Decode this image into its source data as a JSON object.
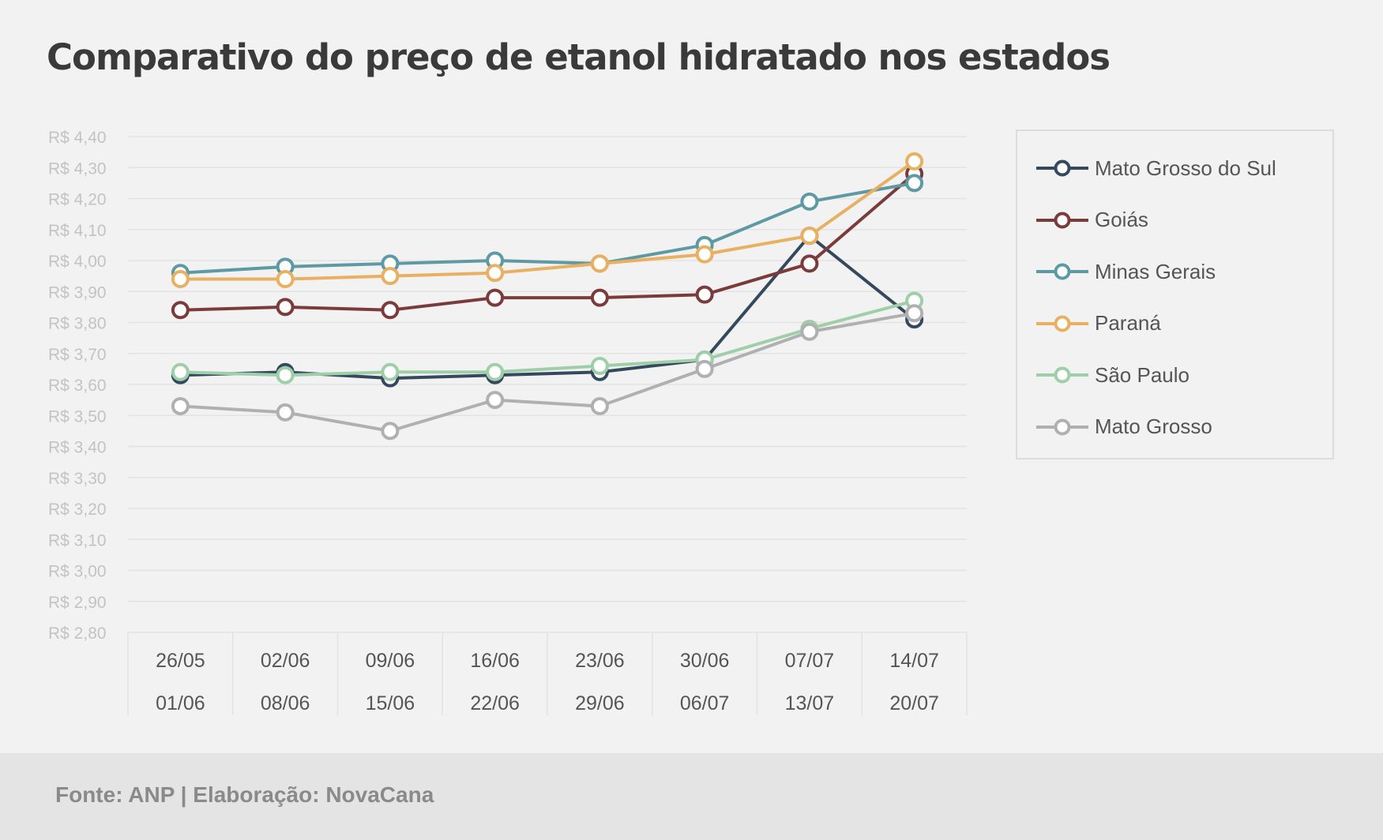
{
  "colors": {
    "background": "#f2f2f2",
    "footer_background": "#e4e4e4",
    "gridline": "#e3e3e3",
    "axis_text": "#c3c3c3",
    "category_text": "#555555"
  },
  "chart_data": {
    "type": "line",
    "title": "Comparativo do preço de etanol hidratado nos estados",
    "xlabel": "",
    "ylabel": "",
    "categories": [
      [
        "26/05",
        "01/06"
      ],
      [
        "02/06",
        "08/06"
      ],
      [
        "09/06",
        "15/06"
      ],
      [
        "16/06",
        "22/06"
      ],
      [
        "23/06",
        "29/06"
      ],
      [
        "30/06",
        "06/07"
      ],
      [
        "07/07",
        "13/07"
      ],
      [
        "14/07",
        "20/07"
      ]
    ],
    "ylim": [
      2.8,
      4.4
    ],
    "ytick_step": 0.1,
    "y_ticks": [
      "R$ 2,80",
      "R$ 2,90",
      "R$ 3,00",
      "R$ 3,10",
      "R$ 3,20",
      "R$ 3,30",
      "R$ 3,40",
      "R$ 3,50",
      "R$ 3,60",
      "R$ 3,70",
      "R$ 3,80",
      "R$ 3,90",
      "R$ 4,00",
      "R$ 4,10",
      "R$ 4,20",
      "R$ 4,30",
      "R$ 4,40"
    ],
    "grid": true,
    "legend_position": "right",
    "series": [
      {
        "name": "Mato Grosso do Sul",
        "color": "#34495e",
        "values": [
          3.63,
          3.64,
          3.62,
          3.63,
          3.64,
          3.68,
          4.08,
          3.81
        ]
      },
      {
        "name": "Goiás",
        "color": "#7b3b3b",
        "values": [
          3.84,
          3.85,
          3.84,
          3.88,
          3.88,
          3.89,
          3.99,
          4.28
        ]
      },
      {
        "name": "Minas Gerais",
        "color": "#5e9aa3",
        "values": [
          3.96,
          3.98,
          3.99,
          4.0,
          3.99,
          4.05,
          4.19,
          4.25
        ]
      },
      {
        "name": "Paraná",
        "color": "#e8b060",
        "values": [
          3.94,
          3.94,
          3.95,
          3.96,
          3.99,
          4.02,
          4.08,
          4.32
        ]
      },
      {
        "name": "São Paulo",
        "color": "#9fcfa8",
        "values": [
          3.64,
          3.63,
          3.64,
          3.64,
          3.66,
          3.68,
          3.78,
          3.87
        ]
      },
      {
        "name": "Mato Grosso",
        "color": "#b0b0b0",
        "values": [
          3.53,
          3.51,
          3.45,
          3.55,
          3.53,
          3.65,
          3.77,
          3.83
        ]
      }
    ]
  },
  "footer": {
    "text": "Fonte: ANP | Elaboração: NovaCana"
  }
}
